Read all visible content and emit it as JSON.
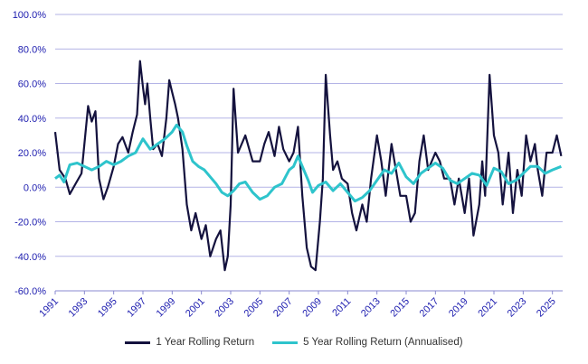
{
  "chart_data": {
    "type": "line",
    "y_tick_labels": [
      "100.0%",
      "80.0%",
      "60.0%",
      "40.0%",
      "20.0%",
      "0.0%",
      "-20.0%",
      "-40.0%",
      "-60.0%"
    ],
    "y_ticks": [
      100,
      80,
      60,
      40,
      20,
      0,
      -20,
      -40,
      -60
    ],
    "ylim": [
      -60,
      100
    ],
    "xlim": [
      1991,
      2025.7
    ],
    "x_tick_labels": [
      "1991",
      "1993",
      "1995",
      "1997",
      "1999",
      "2001",
      "2003",
      "2005",
      "2007",
      "2009",
      "2011",
      "2013",
      "2015",
      "2017",
      "2019",
      "2021",
      "2023",
      "2025"
    ],
    "x_ticks": [
      1991,
      1993,
      1995,
      1997,
      1999,
      2001,
      2003,
      2005,
      2007,
      2009,
      2011,
      2013,
      2015,
      2017,
      2019,
      2021,
      2023,
      2025
    ],
    "grid": "horizontal",
    "legend_position": "bottom",
    "colors": {
      "one_year": "#14123e",
      "five_year": "#2ec4cc",
      "grid": "#b3b3e6",
      "tick_label": "#2020b0"
    },
    "series": [
      {
        "name": "1 Year Rolling Return",
        "key": "one_year",
        "x": [
          1991.0,
          1991.3,
          1991.7,
          1992.0,
          1992.4,
          1992.8,
          1993.0,
          1993.25,
          1993.5,
          1993.75,
          1994.0,
          1994.3,
          1994.6,
          1995.0,
          1995.3,
          1995.6,
          1996.0,
          1996.3,
          1996.6,
          1996.8,
          1997.0,
          1997.15,
          1997.3,
          1997.5,
          1997.7,
          1998.0,
          1998.3,
          1998.6,
          1998.8,
          1999.0,
          1999.2,
          1999.4,
          1999.7,
          2000.0,
          2000.3,
          2000.6,
          2001.0,
          2001.3,
          2001.6,
          2002.0,
          2002.3,
          2002.6,
          2002.8,
          2003.0,
          2003.2,
          2003.5,
          2004.0,
          2004.5,
          2005.0,
          2005.3,
          2005.6,
          2006.0,
          2006.3,
          2006.6,
          2007.0,
          2007.3,
          2007.6,
          2007.9,
          2008.2,
          2008.5,
          2008.8,
          2009.1,
          2009.3,
          2009.5,
          2009.8,
          2010.0,
          2010.3,
          2010.6,
          2011.0,
          2011.3,
          2011.6,
          2012.0,
          2012.3,
          2012.6,
          2013.0,
          2013.3,
          2013.6,
          2014.0,
          2014.3,
          2014.6,
          2015.0,
          2015.3,
          2015.6,
          2015.9,
          2016.2,
          2016.5,
          2017.0,
          2017.3,
          2017.6,
          2018.0,
          2018.3,
          2018.6,
          2019.0,
          2019.3,
          2019.6,
          2020.0,
          2020.2,
          2020.4,
          2020.7,
          2021.0,
          2021.3,
          2021.6,
          2022.0,
          2022.3,
          2022.6,
          2022.9,
          2023.2,
          2023.5,
          2023.8,
          2024.0,
          2024.3,
          2024.6,
          2025.0,
          2025.3,
          2025.6
        ],
        "y": [
          32,
          10,
          5,
          -4,
          2,
          8,
          25,
          47,
          38,
          44,
          5,
          -7,
          0,
          12,
          25,
          29,
          20,
          32,
          42,
          73,
          58,
          48,
          60,
          40,
          22,
          25,
          18,
          40,
          62,
          55,
          48,
          40,
          22,
          -10,
          -25,
          -15,
          -30,
          -22,
          -40,
          -30,
          -25,
          -48,
          -40,
          -10,
          57,
          20,
          30,
          15,
          15,
          25,
          32,
          18,
          35,
          22,
          15,
          20,
          35,
          -5,
          -35,
          -46,
          -48,
          -20,
          5,
          65,
          30,
          10,
          15,
          5,
          2,
          -15,
          -25,
          -10,
          -20,
          5,
          30,
          15,
          -5,
          25,
          10,
          -5,
          -5,
          -20,
          -15,
          15,
          30,
          10,
          20,
          15,
          5,
          5,
          -10,
          5,
          -15,
          5,
          -28,
          -10,
          15,
          -5,
          65,
          30,
          20,
          -10,
          20,
          -15,
          10,
          -5,
          30,
          15,
          25,
          10,
          -5,
          20,
          20,
          30,
          18
        ]
      },
      {
        "name": "5 Year Rolling Return (Annualised)",
        "key": "five_year",
        "x": [
          1991.0,
          1991.3,
          1991.6,
          1992.0,
          1992.5,
          1993.0,
          1993.5,
          1994.0,
          1994.5,
          1995.0,
          1995.5,
          1996.0,
          1996.5,
          1997.0,
          1997.5,
          1998.0,
          1998.5,
          1999.0,
          1999.3,
          1999.7,
          2000.0,
          2000.4,
          2000.8,
          2001.2,
          2001.6,
          2002.0,
          2002.4,
          2002.8,
          2003.2,
          2003.6,
          2004.0,
          2004.5,
          2005.0,
          2005.5,
          2006.0,
          2006.5,
          2007.0,
          2007.3,
          2007.6,
          2008.0,
          2008.3,
          2008.6,
          2009.0,
          2009.5,
          2010.0,
          2010.5,
          2011.0,
          2011.5,
          2012.0,
          2012.5,
          2013.0,
          2013.5,
          2014.0,
          2014.5,
          2015.0,
          2015.5,
          2016.0,
          2016.5,
          2017.0,
          2017.5,
          2018.0,
          2018.5,
          2019.0,
          2019.5,
          2020.0,
          2020.5,
          2021.0,
          2021.5,
          2022.0,
          2022.5,
          2023.0,
          2023.5,
          2024.0,
          2024.5,
          2025.0,
          2025.6
        ],
        "y": [
          5,
          7,
          3,
          13,
          14,
          12,
          10,
          12,
          15,
          13,
          15,
          18,
          20,
          28,
          22,
          25,
          28,
          32,
          36,
          32,
          24,
          15,
          12,
          10,
          6,
          2,
          -3,
          -5,
          -2,
          2,
          3,
          -3,
          -7,
          -5,
          0,
          2,
          10,
          12,
          18,
          10,
          4,
          -3,
          1,
          3,
          -2,
          2,
          -3,
          -8,
          -6,
          -2,
          4,
          10,
          8,
          14,
          6,
          2,
          8,
          11,
          14,
          11,
          4,
          2,
          5,
          8,
          7,
          1,
          11,
          9,
          2,
          4,
          8,
          12,
          12,
          8,
          10,
          12
        ]
      }
    ]
  }
}
